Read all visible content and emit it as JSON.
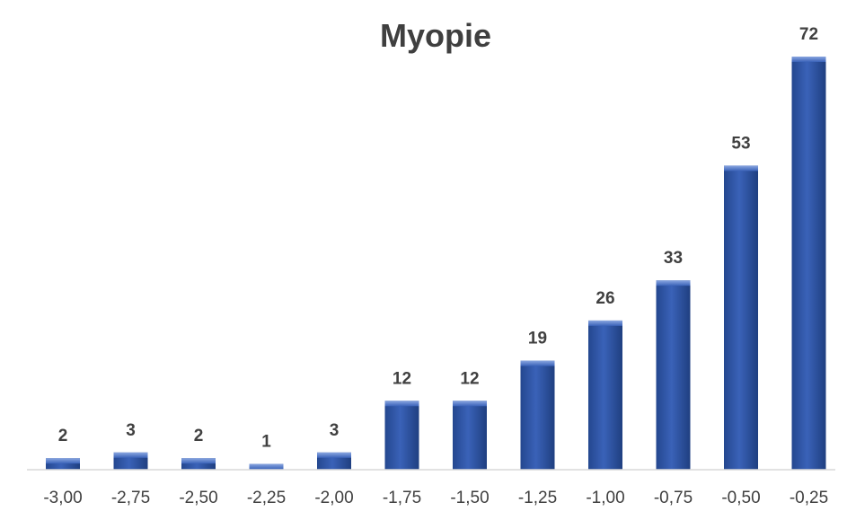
{
  "chart_data": {
    "type": "bar",
    "title": "Myopie",
    "xlabel": "",
    "ylabel": "",
    "categories": [
      "-3,00",
      "-2,75",
      "-2,50",
      "-2,25",
      "-2,00",
      "-1,75",
      "-1,50",
      "-1,25",
      "-1,00",
      "-0,75",
      "-0,50",
      "-0,25"
    ],
    "values": [
      2,
      3,
      2,
      1,
      3,
      12,
      12,
      19,
      26,
      33,
      53,
      72
    ],
    "ylim": [
      0,
      72
    ],
    "grid": false,
    "legend": "none",
    "bar_color": "#2e54a8",
    "bar_highlight_color": "#6f8fd6",
    "data_labels": true
  }
}
